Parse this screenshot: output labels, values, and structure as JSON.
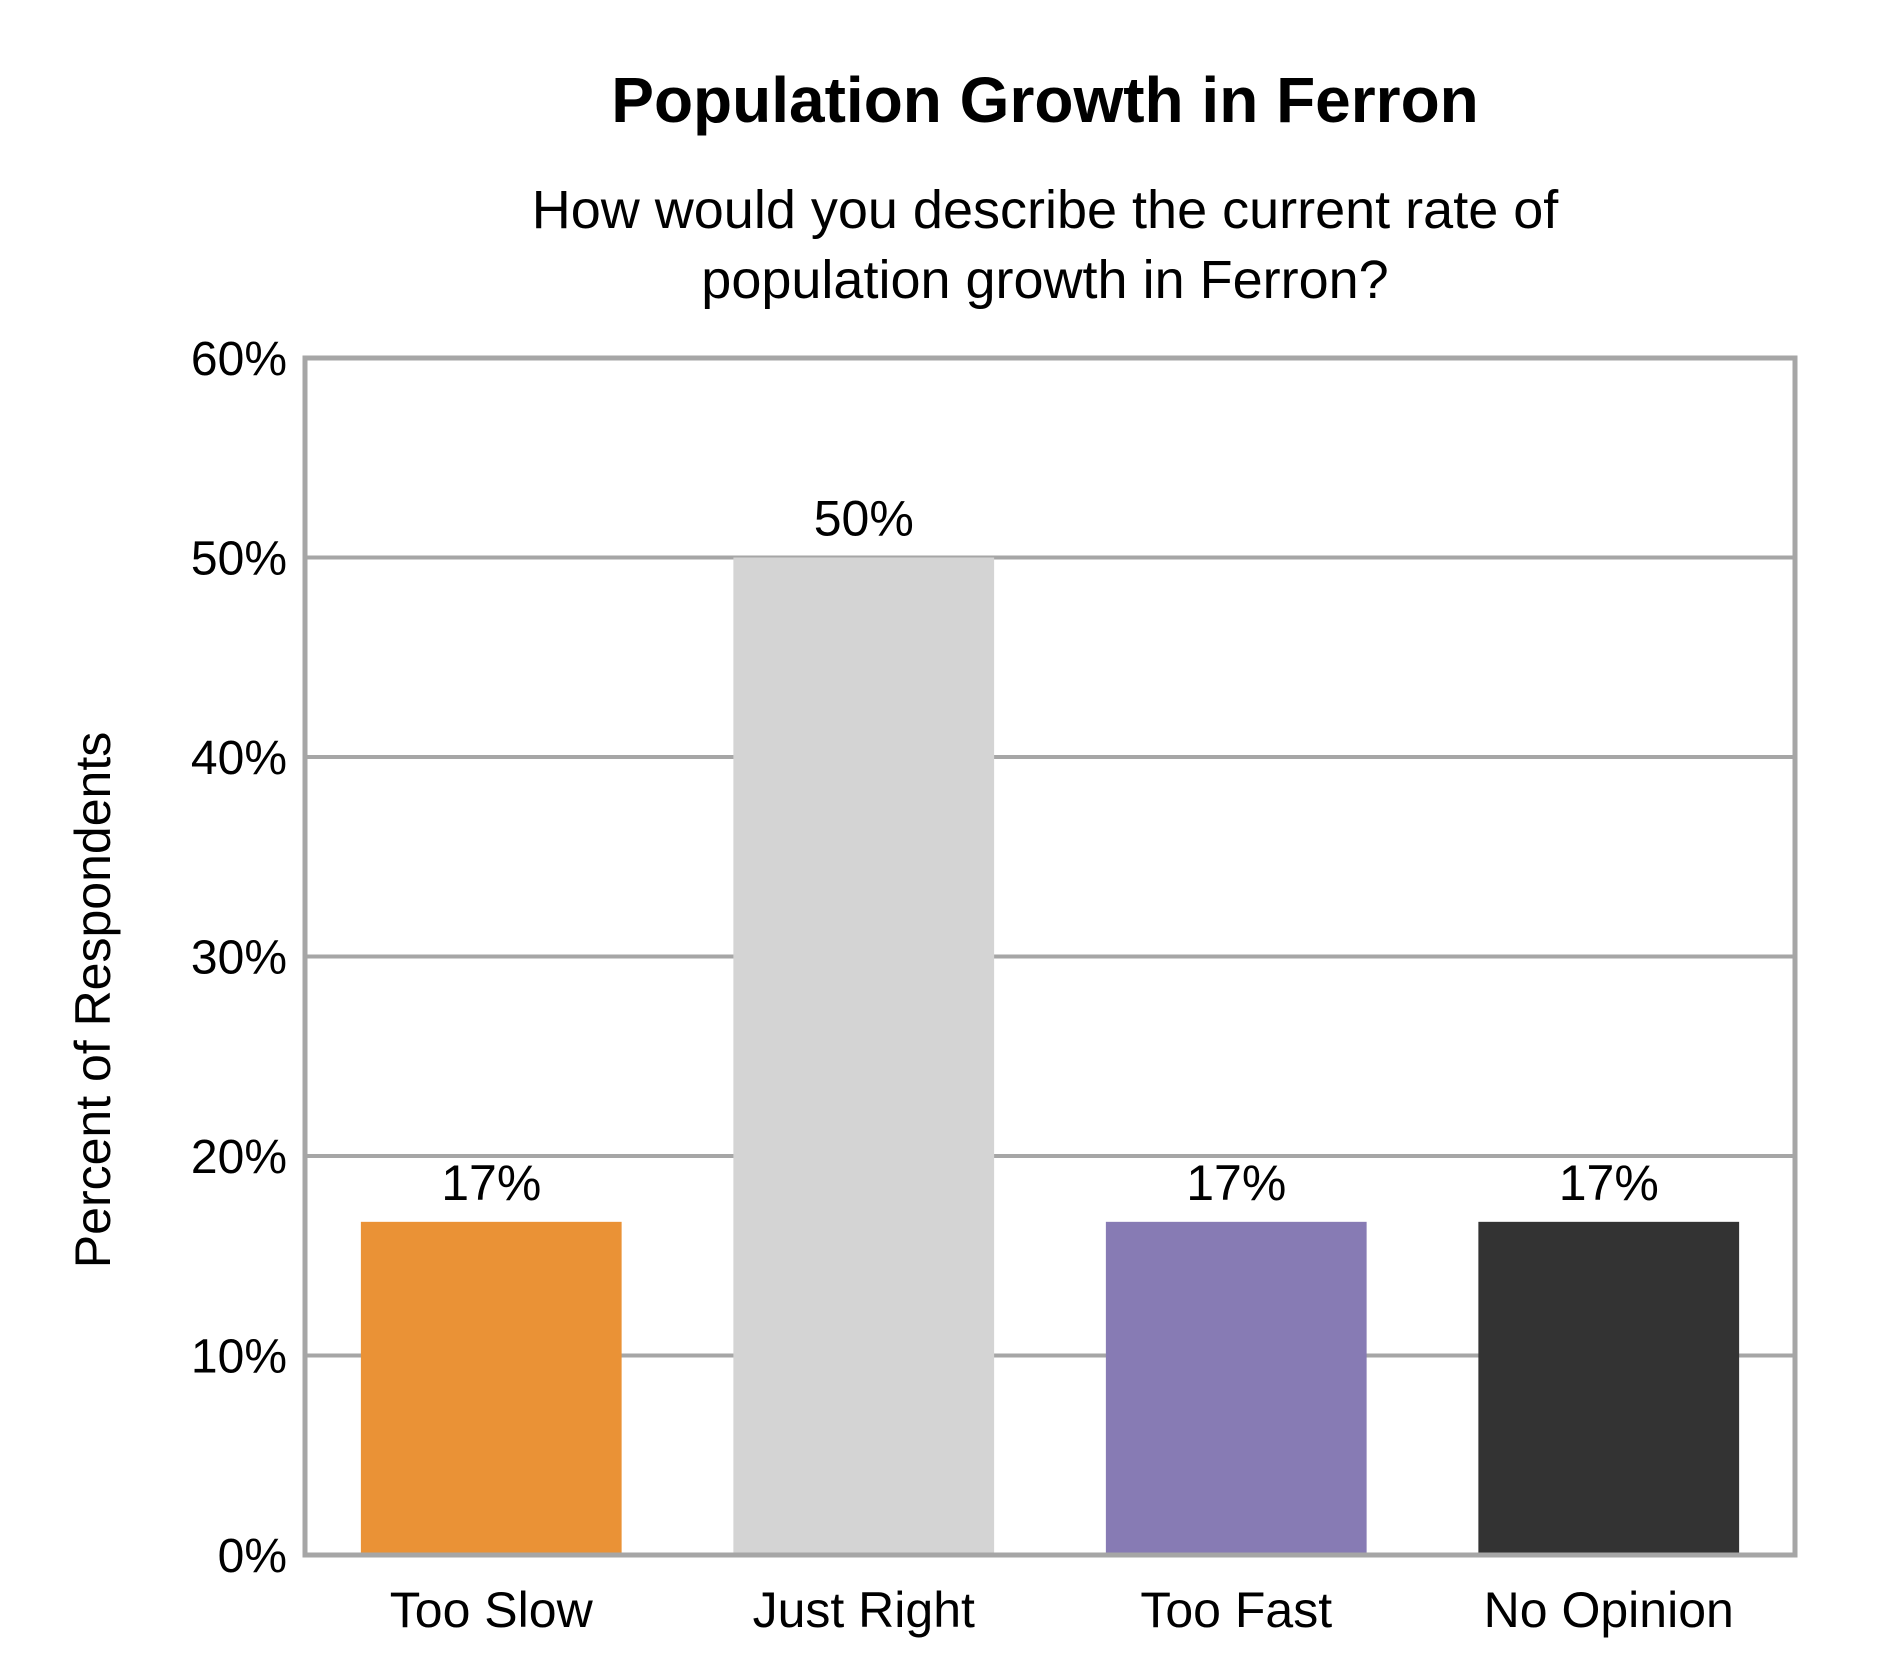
{
  "chart_data": {
    "type": "bar",
    "title": "Population Growth in Ferron",
    "subtitle_lines": [
      "How would you describe the current rate of",
      "population growth in Ferron?"
    ],
    "xlabel": "",
    "ylabel": "Percent of Respondents",
    "categories": [
      "Too Slow",
      "Just Right",
      "Too Fast",
      "No Opinion"
    ],
    "values": [
      16.7,
      50.0,
      16.7,
      16.7
    ],
    "data_labels": [
      "17%",
      "50%",
      "17%",
      "17%"
    ],
    "colors": [
      "#EA9236",
      "#D4D4D4",
      "#877BB4",
      "#333333"
    ],
    "ylim": [
      0,
      60
    ],
    "yticks": [
      0,
      10,
      20,
      30,
      40,
      50,
      60
    ],
    "ytick_labels": [
      "0%",
      "10%",
      "20%",
      "30%",
      "40%",
      "50%",
      "60%"
    ],
    "grid": true,
    "legend": "none"
  }
}
